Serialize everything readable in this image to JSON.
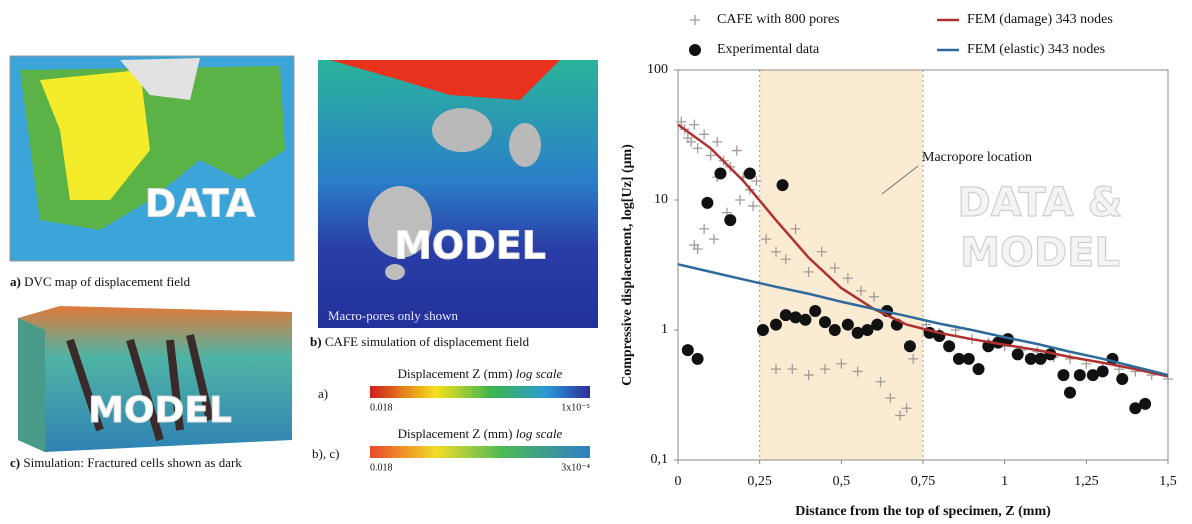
{
  "panels": {
    "a": {
      "letter": "a)",
      "caption": "DVC map of displacement field",
      "overlay": "DATA"
    },
    "b": {
      "letter": "b)",
      "caption": "CAFE simulation of displacement field",
      "overlay": "MODEL",
      "note": "Macro-pores only shown"
    },
    "c": {
      "letter": "c)",
      "caption": "Simulation: Fractured cells shown as dark",
      "overlay": "MODEL"
    },
    "colorbars": [
      {
        "tag": "a)",
        "title": "Displacement Z (mm)",
        "scale": "log scale",
        "min": "0.018",
        "max": "1x10⁻⁵"
      },
      {
        "tag": "b), c)",
        "title": "Displacement Z (mm)",
        "scale": "log scale",
        "min": "0.018",
        "max": "3x10⁻⁴"
      }
    ]
  },
  "chart_data": {
    "type": "scatter",
    "xlabel": "Distance from the top of specimen, Z (mm)",
    "ylabel": "Compressive displacement, log[Uz] (μm)",
    "xlim": [
      0,
      1.5
    ],
    "ylim": [
      0.1,
      100
    ],
    "ylog": true,
    "xticks": [
      0,
      {
        "value": 0.25,
        "label": "0,25"
      },
      {
        "value": 0.5,
        "label": "0,5"
      },
      {
        "value": 0.75,
        "label": "0,75"
      },
      1,
      {
        "value": 1.25,
        "label": "1,25"
      },
      {
        "value": 1.5,
        "label": "1,5"
      }
    ],
    "yticks": [
      {
        "value": 0.1,
        "label": "0,1"
      },
      1,
      10,
      100
    ],
    "highlight": {
      "xrange": [
        0.25,
        0.75
      ],
      "label": "Macropore location",
      "color": "#fbebd2"
    },
    "watermark": [
      "DATA &",
      "MODEL"
    ],
    "series": [
      {
        "name": "CAFE with 800 pores",
        "color": "#a39c96",
        "marker": "plus",
        "x": [
          0.01,
          0.02,
          0.03,
          0.04,
          0.05,
          0.06,
          0.08,
          0.1,
          0.12,
          0.14,
          0.16,
          0.18,
          0.2,
          0.22,
          0.24,
          0.05,
          0.08,
          0.11,
          0.15,
          0.19,
          0.23,
          0.27,
          0.3,
          0.33,
          0.36,
          0.4,
          0.44,
          0.48,
          0.52,
          0.56,
          0.6,
          0.3,
          0.35,
          0.4,
          0.45,
          0.5,
          0.55,
          0.62,
          0.65,
          0.68,
          0.7,
          0.72,
          0.76,
          0.8,
          0.85,
          0.9,
          0.95,
          1.0,
          1.05,
          1.1,
          1.15,
          1.2,
          1.25,
          1.3,
          1.35,
          1.4,
          1.45,
          1.5,
          0.06,
          0.12
        ],
        "y": [
          40,
          35,
          30,
          28,
          38,
          25,
          32,
          22,
          28,
          20,
          18,
          24,
          15,
          12,
          14,
          4.5,
          6,
          5,
          8,
          10,
          9,
          5,
          4,
          3.5,
          6,
          2.8,
          4,
          3,
          2.5,
          2,
          1.8,
          0.5,
          0.5,
          0.45,
          0.5,
          0.55,
          0.48,
          0.4,
          0.3,
          0.22,
          0.25,
          0.6,
          1.1,
          0.95,
          1.0,
          0.85,
          0.8,
          0.75,
          0.7,
          0.68,
          0.62,
          0.6,
          0.55,
          0.52,
          0.5,
          0.48,
          0.45,
          0.42,
          4.2,
          15
        ]
      },
      {
        "name": "Experimental data",
        "color": "#111111",
        "marker": "circle",
        "x": [
          0.03,
          0.06,
          0.09,
          0.13,
          0.16,
          0.22,
          0.32,
          0.26,
          0.3,
          0.33,
          0.36,
          0.39,
          0.42,
          0.45,
          0.48,
          0.52,
          0.55,
          0.58,
          0.61,
          0.64,
          0.67,
          0.71,
          0.77,
          0.8,
          0.83,
          0.86,
          0.89,
          0.92,
          0.95,
          0.98,
          1.01,
          1.04,
          1.08,
          1.11,
          1.14,
          1.18,
          1.2,
          1.23,
          1.27,
          1.3,
          1.33,
          1.36,
          1.4,
          1.43
        ],
        "y": [
          0.7,
          0.6,
          9.5,
          16,
          7,
          16,
          13,
          1.0,
          1.1,
          1.3,
          1.25,
          1.2,
          1.4,
          1.15,
          1.0,
          1.1,
          0.95,
          1.0,
          1.1,
          1.4,
          1.1,
          0.75,
          0.95,
          0.9,
          0.75,
          0.6,
          0.6,
          0.5,
          0.75,
          0.8,
          0.85,
          0.65,
          0.6,
          0.6,
          0.65,
          0.45,
          0.33,
          0.45,
          0.45,
          0.48,
          0.6,
          0.42,
          0.25,
          0.27
        ]
      },
      {
        "name": "FEM (damage) 343 nodes",
        "color": "#b03030",
        "marker": "line",
        "x": [
          0,
          0.1,
          0.2,
          0.3,
          0.4,
          0.5,
          0.6,
          0.7,
          0.8,
          0.9,
          1.0,
          1.1,
          1.2,
          1.3,
          1.4,
          1.5
        ],
        "y": [
          38,
          25,
          14,
          7,
          3.6,
          2.1,
          1.45,
          1.1,
          0.95,
          0.85,
          0.77,
          0.7,
          0.62,
          0.56,
          0.5,
          0.44
        ]
      },
      {
        "name": "FEM (elastic) 343 nodes",
        "color": "#2e6a9a",
        "marker": "line",
        "x": [
          0,
          0.1,
          0.2,
          0.3,
          0.4,
          0.5,
          0.6,
          0.7,
          0.8,
          0.9,
          1.0,
          1.1,
          1.2,
          1.3,
          1.4,
          1.5
        ],
        "y": [
          3.2,
          2.8,
          2.45,
          2.15,
          1.9,
          1.65,
          1.45,
          1.28,
          1.12,
          1.0,
          0.88,
          0.78,
          0.68,
          0.6,
          0.52,
          0.45
        ]
      }
    ]
  }
}
